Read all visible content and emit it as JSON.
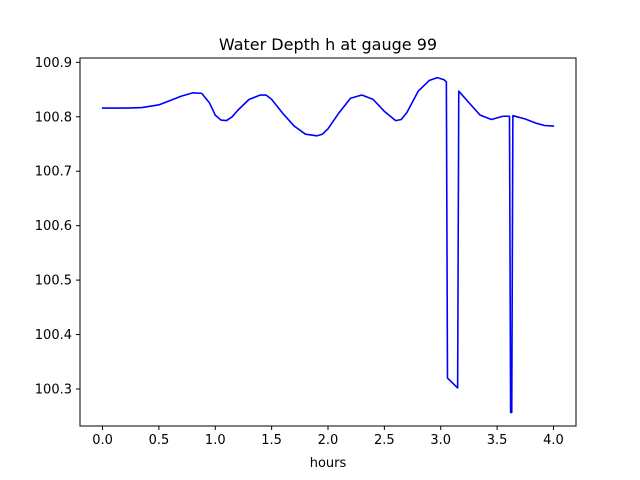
{
  "chart_data": {
    "type": "line",
    "title": "Water Depth h at gauge 99",
    "xlabel": "hours",
    "ylabel": "",
    "xlim": [
      -0.2,
      4.2
    ],
    "ylim": [
      100.232,
      100.908
    ],
    "xticks": [
      0.0,
      0.5,
      1.0,
      1.5,
      2.0,
      2.5,
      3.0,
      3.5,
      4.0
    ],
    "xtick_labels": [
      "0.0",
      "0.5",
      "1.0",
      "1.5",
      "2.0",
      "2.5",
      "3.0",
      "3.5",
      "4.0"
    ],
    "yticks": [
      100.3,
      100.4,
      100.5,
      100.6,
      100.7,
      100.8,
      100.9
    ],
    "ytick_labels": [
      "100.3",
      "100.4",
      "100.5",
      "100.6",
      "100.7",
      "100.8",
      "100.9"
    ],
    "grid": false,
    "series": [
      {
        "color": "#0000ff",
        "x": [
          0.0,
          0.2,
          0.35,
          0.5,
          0.6,
          0.7,
          0.8,
          0.88,
          0.95,
          1.0,
          1.05,
          1.1,
          1.15,
          1.2,
          1.3,
          1.4,
          1.45,
          1.5,
          1.6,
          1.7,
          1.8,
          1.9,
          1.95,
          2.0,
          2.1,
          2.2,
          2.3,
          2.4,
          2.5,
          2.6,
          2.65,
          2.7,
          2.8,
          2.9,
          2.97,
          3.03,
          3.05,
          3.06,
          3.15,
          3.16,
          3.25,
          3.35,
          3.45,
          3.55,
          3.61,
          3.62,
          3.63,
          3.64,
          3.75,
          3.85,
          3.92,
          4.0
        ],
        "values": [
          100.816,
          100.816,
          100.817,
          100.822,
          100.83,
          100.838,
          100.844,
          100.843,
          100.825,
          100.803,
          100.794,
          100.793,
          100.8,
          100.812,
          100.832,
          100.84,
          100.84,
          100.832,
          100.806,
          100.783,
          100.768,
          100.765,
          100.768,
          100.778,
          100.808,
          100.834,
          100.84,
          100.832,
          100.81,
          100.793,
          100.795,
          100.808,
          100.847,
          100.867,
          100.872,
          100.868,
          100.864,
          100.32,
          100.302,
          100.847,
          100.826,
          100.803,
          100.795,
          100.801,
          100.801,
          100.257,
          100.257,
          100.802,
          100.796,
          100.788,
          100.784,
          100.783
        ]
      }
    ]
  }
}
